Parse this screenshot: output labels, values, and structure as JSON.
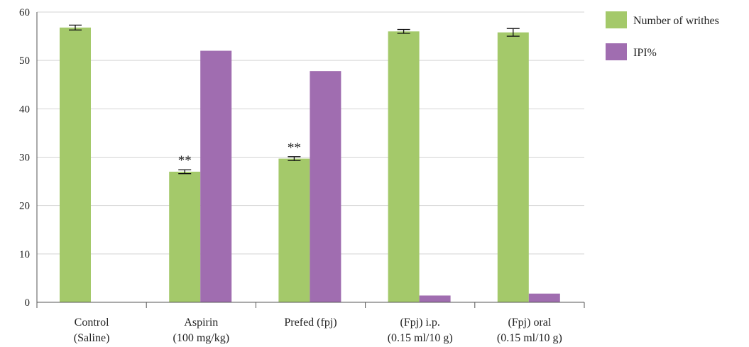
{
  "chart_data": {
    "type": "bar",
    "categories": [
      [
        "Control",
        "(Saline)"
      ],
      [
        "Aspirin",
        "(100 mg/kg)"
      ],
      [
        "Prefed (fpj)"
      ],
      [
        "(Fpj) i.p.",
        "(0.15 ml/10 g)"
      ],
      [
        "(Fpj) oral",
        "(0.15 ml/10 g)"
      ]
    ],
    "series": [
      {
        "name": "Number of writhes",
        "color": "#a4c96a",
        "values": [
          56.8,
          27.0,
          29.7,
          56.0,
          55.8
        ],
        "errors": [
          0.5,
          0.4,
          0.4,
          0.4,
          0.8
        ]
      },
      {
        "name": "IPI%",
        "color": "#a06db0",
        "values": [
          0,
          52.0,
          47.8,
          1.4,
          1.8
        ],
        "errors": [
          null,
          null,
          null,
          null,
          null
        ]
      }
    ],
    "annotations": [
      {
        "category": 1,
        "series": 0,
        "text": "**"
      },
      {
        "category": 2,
        "series": 0,
        "text": "**"
      }
    ],
    "ylim": [
      0,
      60
    ],
    "yticks": [
      "0",
      "10",
      "20",
      "30",
      "40",
      "50",
      "60"
    ],
    "grid": true,
    "legend_position": "right"
  }
}
